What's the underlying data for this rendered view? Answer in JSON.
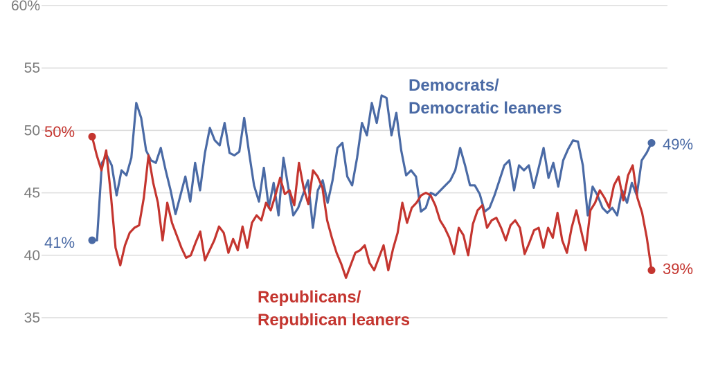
{
  "chart_data": {
    "type": "line",
    "ylim": [
      35,
      60
    ],
    "y_ticks": [
      "60%",
      "55",
      "50",
      "45",
      "40",
      "35"
    ],
    "grid": true,
    "colors": {
      "dem": "#4a6aa5",
      "rep": "#c4352f",
      "grid": "#dcdcdc"
    },
    "annotations": {
      "dem": [
        "Democrats/",
        "Democratic leaners"
      ],
      "rep": [
        "Republicans/",
        "Republican leaners"
      ]
    },
    "series": [
      {
        "key": "dem",
        "start_label": "41%",
        "end_label": "49%",
        "values": [
          41.2,
          41.2,
          47.4,
          48,
          47.2,
          44.8,
          46.8,
          46.4,
          47.8,
          52.2,
          51,
          48.4,
          47.6,
          47.4,
          48.6,
          46.8,
          45.2,
          43.3,
          44.8,
          46.3,
          44.3,
          47.4,
          45.2,
          48.2,
          50.2,
          49.2,
          48.8,
          50.6,
          48.2,
          48,
          48.3,
          51,
          48.2,
          45.6,
          44.3,
          47,
          43.8,
          45.8,
          43.2,
          47.8,
          45.4,
          43.2,
          43.8,
          44.9,
          46,
          42.2,
          45.2,
          46,
          44.2,
          46,
          48.6,
          49,
          46.3,
          45.6,
          47.8,
          50.6,
          49.6,
          52.2,
          50.6,
          52.8,
          52.6,
          49.6,
          51.4,
          48.4,
          46.4,
          46.8,
          46.3,
          43.5,
          43.8,
          45,
          44.8,
          45.2,
          45.6,
          46,
          46.8,
          48.6,
          47.2,
          45.6,
          45.6,
          44.9,
          43.5,
          43.8,
          44.8,
          46,
          47.2,
          47.6,
          45.2,
          47.2,
          46.8,
          47.2,
          45.4,
          47,
          48.6,
          46.2,
          47.4,
          45.5,
          47.6,
          48.5,
          49.2,
          49.1,
          47.2,
          43.2,
          45.5,
          44.8,
          43.8,
          43.4,
          43.8,
          43.2,
          45.2,
          44.2,
          45.8,
          44.8,
          47.6,
          48.2,
          49
        ]
      },
      {
        "key": "rep",
        "start_label": "50%",
        "end_label": "39%",
        "values": [
          49.5,
          48,
          46.8,
          48.4,
          44.8,
          40.6,
          39.2,
          40.8,
          41.8,
          42.2,
          42.4,
          44.6,
          48,
          45.8,
          44.2,
          41.2,
          44.2,
          42.6,
          41.6,
          40.6,
          39.8,
          40,
          41,
          41.9,
          39.6,
          40.4,
          41.2,
          42.3,
          41.8,
          40.2,
          41.3,
          40.4,
          42.3,
          40.6,
          42.6,
          43.2,
          42.8,
          44.2,
          43.6,
          44.8,
          46.2,
          44.9,
          45.2,
          44,
          47.4,
          45.4,
          44.1,
          46.8,
          46.3,
          45.4,
          42.8,
          41.4,
          40.2,
          39.3,
          38.2,
          39.2,
          40.2,
          40.4,
          40.8,
          39.4,
          38.8,
          39.8,
          40.8,
          38.8,
          40.5,
          41.8,
          44.2,
          42.6,
          43.8,
          44.2,
          44.8,
          45,
          44.8,
          44,
          42.8,
          42.2,
          41.4,
          40.1,
          42.2,
          41.6,
          40,
          42.5,
          43.6,
          44,
          42.2,
          42.8,
          43,
          42.2,
          41.2,
          42.4,
          42.8,
          42.2,
          40.1,
          41,
          42,
          42.2,
          40.6,
          42.2,
          41.4,
          43.4,
          41.2,
          40.2,
          42.2,
          43.6,
          42,
          40.4,
          43.6,
          44.2,
          45.2,
          44.6,
          43.8,
          45.6,
          46.3,
          44.4,
          46.4,
          47.2,
          44.6,
          43.4,
          41.4,
          38.8
        ]
      }
    ]
  }
}
